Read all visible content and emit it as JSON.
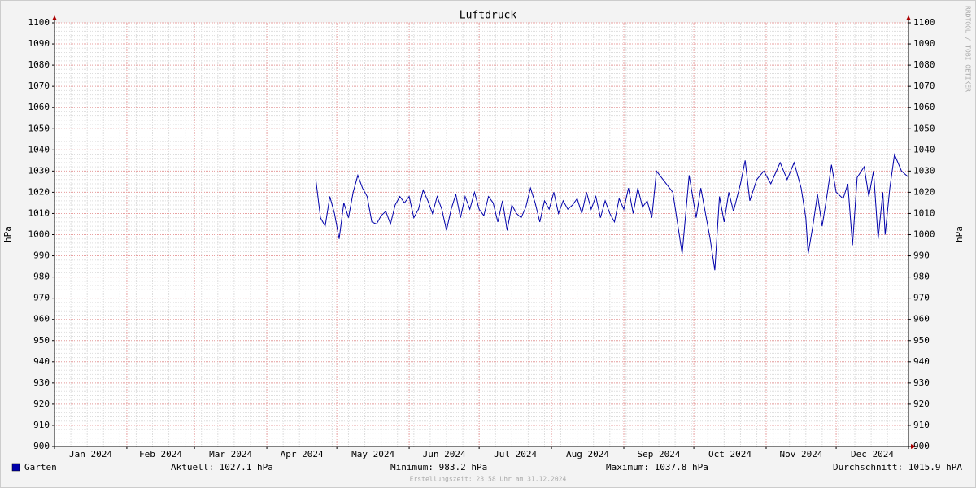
{
  "chart_data": {
    "type": "line",
    "title": "Luftdruck",
    "ylabel": "hPa",
    "y2label": "hPa",
    "watermark": "RRDTOOL / TOBI OETIKER",
    "footer": "Erstellungszeit: 23:58 Uhr am 31.12.2024",
    "xlim": [
      0,
      366
    ],
    "xgrid": [
      0,
      31,
      60,
      91,
      121,
      152,
      182,
      213,
      244,
      274,
      305,
      335,
      366
    ],
    "month_labels": [
      "Jan 2024",
      "Feb 2024",
      "Mar 2024",
      "Apr 2024",
      "May 2024",
      "Jun 2024",
      "Jul 2024",
      "Aug 2024",
      "Sep 2024",
      "Oct 2024",
      "Nov 2024",
      "Dec 2024"
    ],
    "ylim": [
      900,
      1100
    ],
    "yticks": [
      900,
      910,
      920,
      930,
      940,
      950,
      960,
      970,
      980,
      990,
      1000,
      1010,
      1020,
      1030,
      1040,
      1050,
      1060,
      1070,
      1080,
      1090,
      1100
    ],
    "y2lim": [
      900,
      1100
    ],
    "y2ticks": [
      900,
      910,
      920,
      930,
      940,
      950,
      960,
      970,
      980,
      990,
      1000,
      1010,
      1020,
      1030,
      1040,
      1050,
      1060,
      1070,
      1080,
      1090,
      1100
    ],
    "grid": true,
    "series": [
      {
        "name": "Garten",
        "color": "#0000aa",
        "x": [
          112,
          114,
          116,
          118,
          120,
          122,
          124,
          126,
          128,
          130,
          132,
          134,
          136,
          138,
          140,
          142,
          144,
          146,
          148,
          150,
          152,
          154,
          156,
          158,
          160,
          162,
          164,
          166,
          168,
          170,
          172,
          174,
          176,
          178,
          180,
          182,
          184,
          186,
          188,
          190,
          192,
          194,
          196,
          198,
          200,
          202,
          204,
          206,
          208,
          210,
          212,
          214,
          216,
          218,
          220,
          222,
          224,
          226,
          228,
          230,
          232,
          234,
          236,
          238,
          240,
          242,
          244,
          246,
          248,
          250,
          252,
          254,
          256,
          258,
          265,
          269,
          272,
          275,
          277,
          281,
          283,
          285,
          287,
          289,
          291,
          294,
          296,
          298,
          301,
          304,
          307,
          311,
          314,
          317,
          320,
          322,
          323,
          325,
          327,
          329,
          331,
          333,
          335,
          338,
          340,
          342,
          344,
          347,
          349,
          351,
          353,
          355,
          356,
          358,
          360,
          363,
          366
        ],
        "values": [
          1026,
          1008,
          1004,
          1018,
          1010,
          998,
          1015,
          1008,
          1020,
          1028,
          1022,
          1018,
          1006,
          1005,
          1009,
          1011,
          1005,
          1014,
          1018,
          1015,
          1018,
          1008,
          1012,
          1021,
          1016,
          1010,
          1018,
          1012,
          1002,
          1012,
          1019,
          1008,
          1018,
          1012,
          1020,
          1012,
          1009,
          1018,
          1015,
          1006,
          1016,
          1002,
          1014,
          1010,
          1008,
          1013,
          1022,
          1015,
          1006,
          1016,
          1012,
          1020,
          1010,
          1016,
          1012,
          1014,
          1017,
          1010,
          1020,
          1012,
          1018,
          1008,
          1016,
          1010,
          1006,
          1017,
          1012,
          1022,
          1010,
          1022,
          1013,
          1016,
          1008,
          1030,
          1020,
          991,
          1028,
          1008,
          1022,
          998,
          983.2,
          1018,
          1006,
          1020,
          1011,
          1024,
          1035,
          1016,
          1026,
          1030,
          1024,
          1034,
          1026,
          1034,
          1022,
          1008,
          991,
          1004,
          1019,
          1004,
          1018,
          1033,
          1020,
          1017,
          1024,
          995,
          1027,
          1032,
          1018,
          1030,
          998,
          1020,
          1000,
          1022,
          1037.8,
          1030,
          1027.1
        ]
      }
    ],
    "stats": [
      "Aktuell: 1027.1 hPa",
      "Minimum: 983.2 hPa",
      "Maximum: 1037.8 hPa",
      "Durchschnitt: 1015.9 hPA"
    ]
  }
}
